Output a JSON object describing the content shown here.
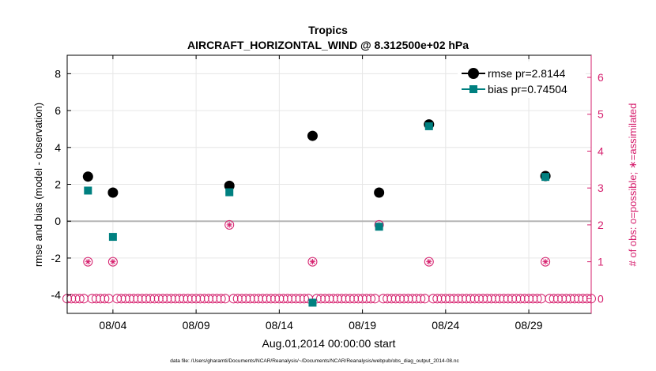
{
  "chart_data": {
    "type": "scatter",
    "title": "Tropics",
    "subtitle": "AIRCRAFT_HORIZONTAL_WIND @ 8.312500e+02 hPa",
    "xlabel": "Aug.01,2014 00:00:00 start",
    "ylabel_left": "rmse and bias (model - observation)",
    "ylabel_right": "# of obs: o=possible; ∗=assimilated",
    "footnote": "data file: /Users/gharamti/Documents/NCAR/Reanalysis/~/Documents/NCAR/Reanalysis/webpub/obs_diag_output_2014-08.nc",
    "xlim": [
      1.25,
      32.75
    ],
    "ylim_left": [
      -5,
      9
    ],
    "ylim_right": [
      -0.4,
      6.6
    ],
    "x_ticks": [
      {
        "value": 4,
        "label": "08/04"
      },
      {
        "value": 9,
        "label": "08/09"
      },
      {
        "value": 14,
        "label": "08/14"
      },
      {
        "value": 19,
        "label": "08/19"
      },
      {
        "value": 24,
        "label": "08/24"
      },
      {
        "value": 29,
        "label": "08/29"
      }
    ],
    "y_ticks_left": [
      {
        "value": -4,
        "label": "-4"
      },
      {
        "value": -2,
        "label": "-2"
      },
      {
        "value": 0,
        "label": "0"
      },
      {
        "value": 2,
        "label": "2"
      },
      {
        "value": 4,
        "label": "4"
      },
      {
        "value": 6,
        "label": "6"
      },
      {
        "value": 8,
        "label": "8"
      }
    ],
    "y_ticks_right": [
      {
        "value": 0,
        "label": "0"
      },
      {
        "value": 1,
        "label": "1"
      },
      {
        "value": 2,
        "label": "2"
      },
      {
        "value": 3,
        "label": "3"
      },
      {
        "value": 4,
        "label": "4"
      },
      {
        "value": 5,
        "label": "5"
      },
      {
        "value": 6,
        "label": "6"
      }
    ],
    "zero_line": 0,
    "legend_position": "top-right",
    "series": [
      {
        "name": "rmse pr=2.8144",
        "color": "#000000",
        "marker": "circle",
        "x": [
          2.5,
          4,
          11,
          16,
          20,
          23,
          30
        ],
        "y": [
          2.42,
          1.55,
          1.92,
          4.63,
          1.55,
          5.25,
          2.45
        ]
      },
      {
        "name": "bias pr=0.74504",
        "color": "#008080",
        "marker": "square",
        "x": [
          2.5,
          4,
          11,
          16,
          20,
          23,
          30
        ],
        "y": [
          1.66,
          -0.85,
          1.57,
          -4.42,
          -0.3,
          5.15,
          2.4
        ]
      }
    ],
    "obs_counts": {
      "color": "#d6206e",
      "x_start": 1.25,
      "x_step": 0.25,
      "x_end": 32.75,
      "nonzero": [
        {
          "x": 2.5,
          "possible": 1,
          "assimilated": 1
        },
        {
          "x": 4,
          "possible": 1,
          "assimilated": 1
        },
        {
          "x": 11,
          "possible": 2,
          "assimilated": 2
        },
        {
          "x": 16,
          "possible": 1,
          "assimilated": 1
        },
        {
          "x": 20,
          "possible": 2,
          "assimilated": 2
        },
        {
          "x": 23,
          "possible": 1,
          "assimilated": 1
        },
        {
          "x": 30,
          "possible": 1,
          "assimilated": 1
        }
      ]
    }
  }
}
